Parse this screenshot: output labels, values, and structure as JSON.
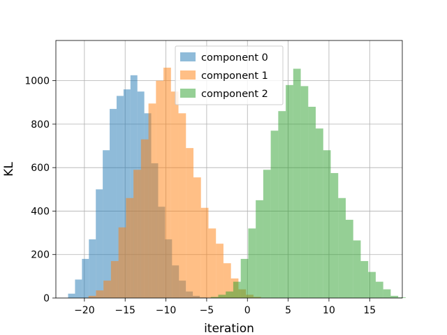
{
  "chart_data": {
    "type": "bar",
    "xlabel": "iteration",
    "ylabel": "KL",
    "xlim": [
      -23.5,
      19.0
    ],
    "ylim": [
      0,
      1185
    ],
    "x_ticks": [
      -20,
      -15,
      -10,
      -5,
      0,
      5,
      10,
      15
    ],
    "x_tick_labels": [
      "−20",
      "−15",
      "−10",
      "−5",
      "0",
      "5",
      "10",
      "15"
    ],
    "y_ticks": [
      0,
      200,
      400,
      600,
      800,
      1000
    ],
    "y_tick_labels": [
      "0",
      "200",
      "400",
      "600",
      "800",
      "1000"
    ],
    "grid": true,
    "legend_position": "upper center",
    "colors": [
      "#1f77b4",
      "#ff7f0e",
      "#2ca02c"
    ],
    "bar_alpha": 0.5,
    "series": [
      {
        "name": "component 0",
        "bin_start": -22.0,
        "bin_width": 0.85,
        "values": [
          20,
          85,
          180,
          270,
          500,
          680,
          870,
          930,
          960,
          1025,
          950,
          850,
          620,
          420,
          270,
          150,
          80,
          30,
          10,
          3
        ]
      },
      {
        "name": "component 1",
        "bin_start": -19.5,
        "bin_width": 0.92,
        "values": [
          10,
          35,
          80,
          170,
          325,
          460,
          590,
          730,
          895,
          1000,
          1060,
          950,
          850,
          690,
          555,
          415,
          320,
          250,
          160,
          90,
          40,
          15,
          5
        ]
      },
      {
        "name": "component 2",
        "bin_start": -4.5,
        "bin_width": 0.92,
        "values": [
          5,
          15,
          30,
          75,
          180,
          320,
          450,
          590,
          770,
          860,
          980,
          1055,
          975,
          880,
          780,
          680,
          575,
          460,
          360,
          265,
          170,
          120,
          75,
          40,
          10,
          3
        ]
      }
    ]
  }
}
